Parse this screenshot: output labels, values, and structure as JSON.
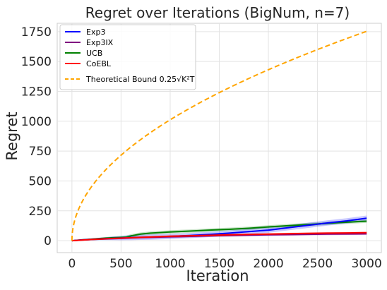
{
  "chart_data": {
    "type": "line",
    "title": "Regret over Iterations (BigNum, n=7)",
    "xlabel": "Iteration",
    "ylabel": "Regret",
    "xlim": [
      -150,
      3150
    ],
    "ylim": [
      -100,
      1820
    ],
    "xticks": [
      0,
      500,
      1000,
      1500,
      2000,
      2500,
      3000
    ],
    "yticks": [
      0,
      250,
      500,
      750,
      1000,
      1250,
      1500,
      1750
    ],
    "grid": true,
    "legend_position": "top-left",
    "x": [
      0,
      100,
      200,
      300,
      400,
      500,
      550,
      600,
      700,
      800,
      900,
      1000,
      1200,
      1400,
      1600,
      1800,
      2000,
      2200,
      2400,
      2600,
      2800,
      3000
    ],
    "series": [
      {
        "name": "Exp3",
        "color": "#0000ff",
        "values": [
          0,
          6,
          11,
          15,
          19,
          22,
          24,
          26,
          28,
          30,
          33,
          36,
          43,
          52,
          63,
          76,
          88,
          108,
          128,
          148,
          166,
          188
        ],
        "band": 22
      },
      {
        "name": "Exp3IX",
        "color": "#800080",
        "values": [
          0,
          5,
          9,
          13,
          16,
          19,
          21,
          23,
          26,
          28,
          30,
          32,
          36,
          40,
          43,
          46,
          49,
          51,
          53,
          55,
          56,
          57
        ],
        "band": 10
      },
      {
        "name": "UCB",
        "color": "#008000",
        "values": [
          0,
          7,
          13,
          19,
          24,
          27,
          29,
          40,
          55,
          63,
          68,
          73,
          80,
          88,
          95,
          104,
          115,
          125,
          135,
          145,
          155,
          163
        ],
        "band": 14
      },
      {
        "name": "CoEBL",
        "color": "#ff0000",
        "values": [
          0,
          5,
          10,
          14,
          18,
          21,
          23,
          25,
          28,
          31,
          34,
          37,
          41,
          45,
          49,
          52,
          55,
          58,
          61,
          63,
          65,
          67
        ],
        "band": 8
      }
    ],
    "bound": {
      "name": "Theoretical Bound 0.25√K²T",
      "color": "#ffa500",
      "formula": "0.25*sqrt(K^2*T)",
      "K": 128,
      "x_max": 3000,
      "y_at_x_max": 1752.7
    }
  }
}
